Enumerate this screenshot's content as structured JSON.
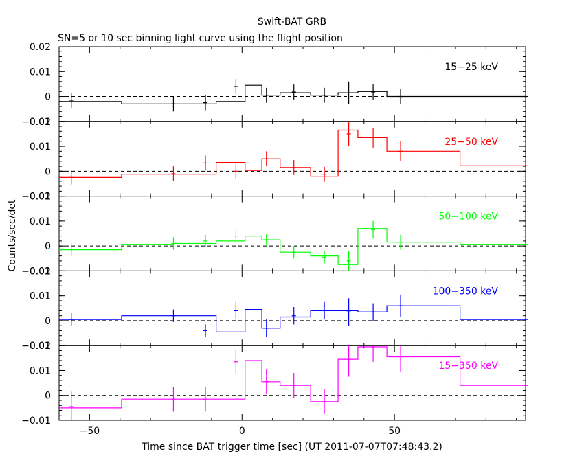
{
  "title": "Swift-BAT GRB",
  "subtitle": "SN=5 or 10 sec binning light curve using the flight position",
  "xlabel": "Time since BAT trigger time [sec] (UT 2011-07-07T07:48:43.2)",
  "ylabel": "Counts/sec/det",
  "chart_data": {
    "type": "line",
    "title": "Swift-BAT GRB",
    "subtitle": "SN=5 or 10 sec binning light curve using the flight position",
    "xlabel": "Time since BAT trigger time [sec] (UT 2011-07-07T07:48:43.2)",
    "ylabel": "Counts/sec/det",
    "xlim": [
      -60,
      93
    ],
    "xticks": [
      -50,
      0,
      50
    ],
    "xtick_labels": [
      "−50",
      "0",
      "50"
    ],
    "ylim": [
      -0.01,
      0.02
    ],
    "yticks": [
      -0.01,
      0,
      0.01,
      0.02
    ],
    "ytick_labels": [
      "−0.01",
      "0",
      "0.01",
      "0.02"
    ],
    "edges": [
      -60,
      -39.5,
      -22.5,
      -8.5,
      1,
      6.5,
      12.5,
      22.5,
      31.5,
      38,
      47.5,
      71.5,
      93
    ],
    "err_x": [
      -56,
      -22.5,
      -12,
      -2,
      8,
      17,
      27,
      35,
      43,
      52,
      93
    ],
    "panels": [
      {
        "name": "15−25 keV",
        "color": "#000000",
        "values": [
          -0.002,
          -0.003,
          -0.003,
          -0.002,
          0.0045,
          0.0005,
          0.0015,
          0.0005,
          0.0015,
          0.002,
          0,
          0
        ],
        "err_y": [
          -0.0015,
          -0.003,
          -0.0025,
          0.004,
          0.0005,
          0.0018,
          0.0005,
          0.0015,
          0.0018,
          0,
          0
        ],
        "err_dy": [
          0.003,
          0.003,
          0.003,
          0.003,
          0.003,
          0.003,
          0.003,
          0.0045,
          0.003,
          0.003,
          0
        ]
      },
      {
        "name": "25−50 keV",
        "color": "#ff0000",
        "values": [
          -0.0025,
          -0.0012,
          -0.0012,
          0.0035,
          0.0003,
          0.005,
          0.0015,
          -0.002,
          0.0165,
          0.0135,
          0.008,
          0.0022
        ],
        "err_y": [
          -0.0025,
          -0.001,
          0.0033,
          0,
          0.005,
          0.0015,
          -0.0012,
          0.015,
          0.0135,
          0.008,
          0.0022
        ],
        "err_dy": [
          0.0028,
          0.003,
          0.003,
          0.003,
          0.003,
          0.003,
          0.003,
          0.005,
          0.004,
          0.004,
          0
        ]
      },
      {
        "name": "50−100 keV",
        "color": "#00ff00",
        "values": [
          -0.0015,
          0.0005,
          0.001,
          0.002,
          0.004,
          0.0025,
          -0.0025,
          -0.004,
          -0.0075,
          0.007,
          0.0015,
          0.0005
        ],
        "err_y": [
          -0.0015,
          0.001,
          0.002,
          0.004,
          0.0025,
          -0.0025,
          -0.0045,
          -0.006,
          0.0065,
          0.0015,
          0.0005
        ],
        "err_dy": [
          0.0025,
          0.0025,
          0.0025,
          0.0025,
          0.0025,
          0.0025,
          0.0025,
          0.004,
          0.0035,
          0.003,
          0
        ]
      },
      {
        "name": "100−350 keV",
        "color": "#0000ff",
        "values": [
          0.0005,
          0.002,
          0.002,
          -0.0045,
          0.0045,
          -0.003,
          0.0015,
          0.004,
          0.004,
          0.0035,
          0.006,
          0.0005
        ],
        "err_y": [
          0.0005,
          0.002,
          -0.004,
          0.004,
          -0.003,
          0.002,
          0.004,
          0.0035,
          0.0035,
          0.006,
          0.0005
        ],
        "err_dy": [
          0.0025,
          0.0025,
          0.0025,
          0.0035,
          0.0035,
          0.0035,
          0.0035,
          0.0055,
          0.0035,
          0.0045,
          0
        ]
      },
      {
        "name": "15−350 keV",
        "color": "#ff00ff",
        "values": [
          -0.005,
          -0.0015,
          -0.0015,
          -0.0015,
          0.014,
          0.0055,
          0.004,
          -0.0025,
          0.0145,
          0.0195,
          0.0155,
          0.004
        ],
        "err_y": [
          -0.0045,
          -0.0015,
          -0.0015,
          0.0135,
          0.0055,
          0.004,
          -0.0025,
          0.0145,
          0.0195,
          0.0155,
          0.004
        ],
        "err_dy": [
          0.006,
          0.005,
          0.005,
          0.005,
          0.005,
          0.005,
          0.005,
          0.007,
          0.006,
          0.006,
          0
        ]
      }
    ]
  }
}
